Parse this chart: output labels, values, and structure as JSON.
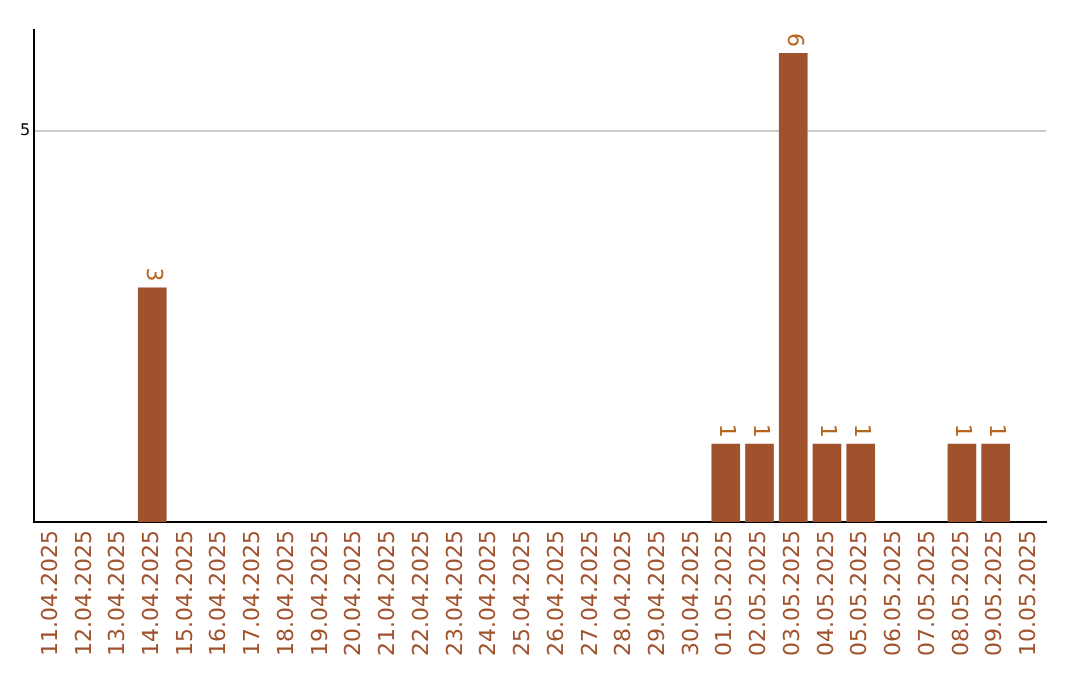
{
  "chart_data": {
    "type": "bar",
    "categories": [
      "11.04.2025",
      "12.04.2025",
      "13.04.2025",
      "14.04.2025",
      "15.04.2025",
      "16.04.2025",
      "17.04.2025",
      "18.04.2025",
      "19.04.2025",
      "20.04.2025",
      "21.04.2025",
      "22.04.2025",
      "23.04.2025",
      "24.04.2025",
      "25.04.2025",
      "26.04.2025",
      "27.04.2025",
      "28.04.2025",
      "29.04.2025",
      "30.04.2025",
      "01.05.2025",
      "02.05.2025",
      "03.05.2025",
      "04.05.2025",
      "05.05.2025",
      "06.05.2025",
      "07.05.2025",
      "08.05.2025",
      "09.05.2025",
      "10.05.2025"
    ],
    "values": [
      0,
      0,
      0,
      3,
      0,
      0,
      0,
      0,
      0,
      0,
      0,
      0,
      0,
      0,
      0,
      0,
      0,
      0,
      0,
      0,
      1,
      1,
      6,
      1,
      1,
      0,
      0,
      1,
      1,
      0
    ],
    "value_labels": [
      null,
      null,
      null,
      "3",
      null,
      null,
      null,
      null,
      null,
      null,
      null,
      null,
      null,
      null,
      null,
      null,
      null,
      null,
      null,
      null,
      "1",
      "1",
      "6",
      "1",
      "1",
      null,
      null,
      "1",
      "1",
      null
    ],
    "color": "#a0522d",
    "ylim": [
      0,
      6.3
    ],
    "yticks": [
      5
    ],
    "grid": "y",
    "legend": false
  }
}
